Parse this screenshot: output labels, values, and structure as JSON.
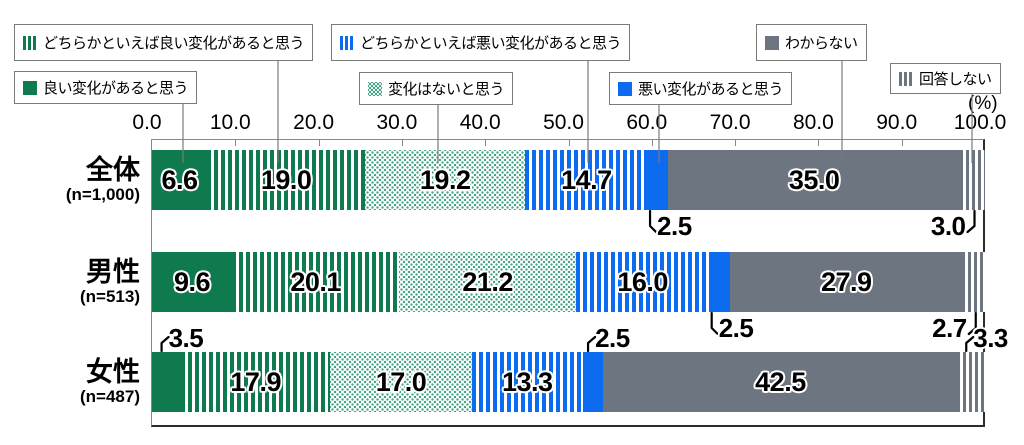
{
  "legend": {
    "items": [
      {
        "id": "rather-good",
        "label": "どちらかといえば良い変化があると思う",
        "swatch": "green-stripes"
      },
      {
        "id": "good",
        "label": "良い変化があると思う",
        "swatch": "green-solid"
      },
      {
        "id": "no-change",
        "label": "変化はないと思う",
        "swatch": "green-dots"
      },
      {
        "id": "rather-bad",
        "label": "どちらかといえば悪い変化があると思う",
        "swatch": "blue-stripes"
      },
      {
        "id": "bad",
        "label": "悪い変化があると思う",
        "swatch": "blue-solid"
      },
      {
        "id": "dont-know",
        "label": "わからない",
        "swatch": "gray-solid"
      },
      {
        "id": "no-answer",
        "label": "回答しない",
        "swatch": "gray-stripes"
      }
    ]
  },
  "axis": {
    "unit_label": "(%)",
    "tick_values": [
      0,
      10,
      20,
      30,
      40,
      50,
      60,
      70,
      80,
      90,
      100
    ]
  },
  "rows": [
    {
      "id": "total",
      "label": "全体",
      "n_label": "(n=1,000)"
    },
    {
      "id": "male",
      "label": "男性",
      "n_label": "(n=513)"
    },
    {
      "id": "female",
      "label": "女性",
      "n_label": "(n=487)"
    }
  ],
  "colors": {
    "green": "#0e7a4e",
    "blue": "#0d6bf0",
    "gray": "#6d7680",
    "dot_green": "#45a287"
  },
  "chart_data": {
    "type": "bar",
    "stacked": true,
    "orientation": "horizontal",
    "unit": "%",
    "xlim": [
      0,
      100
    ],
    "x_ticks": [
      0,
      10,
      20,
      30,
      40,
      50,
      60,
      70,
      80,
      90,
      100
    ],
    "grid": false,
    "legend_position": "top",
    "categories": [
      "全体 (n=1,000)",
      "男性 (n=513)",
      "女性 (n=487)"
    ],
    "series": [
      {
        "id": "good",
        "name": "良い変化があると思う",
        "values": [
          6.6,
          9.6,
          3.5
        ]
      },
      {
        "id": "rather-good",
        "name": "どちらかといえば良い変化があると思う",
        "values": [
          19.0,
          20.1,
          17.9
        ]
      },
      {
        "id": "no-change",
        "name": "変化はないと思う",
        "values": [
          19.2,
          21.2,
          17.0
        ]
      },
      {
        "id": "rather-bad",
        "name": "どちらかといえば悪い変化があると思う",
        "values": [
          14.7,
          16.0,
          13.3
        ]
      },
      {
        "id": "bad",
        "name": "悪い変化があると思う",
        "values": [
          2.5,
          2.5,
          2.5
        ]
      },
      {
        "id": "dont-know",
        "name": "わからない",
        "values": [
          35.0,
          27.9,
          42.5
        ]
      },
      {
        "id": "no-answer",
        "name": "回答しない",
        "values": [
          3.0,
          2.7,
          3.3
        ]
      }
    ]
  }
}
